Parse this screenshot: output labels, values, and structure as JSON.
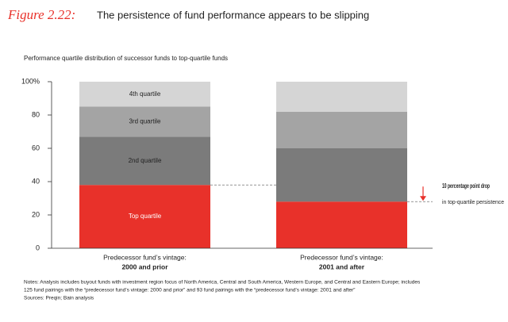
{
  "chart_data": {
    "type": "stacked_bar",
    "figure_label": "Figure 2.22:",
    "title": "The persistence of fund performance appears to be slipping",
    "subtitle": "Performance quartile distribution of successor funds to top-quartile funds",
    "category_prefix": "Predecessor fund’s vintage:",
    "categories": [
      "2000 and prior",
      "2001 and after"
    ],
    "series": [
      {
        "name": "Top quartile",
        "color": "#e8312a",
        "values": [
          38,
          28
        ]
      },
      {
        "name": "2nd quartile",
        "color": "#7b7b7b",
        "values": [
          29,
          32
        ]
      },
      {
        "name": "3rd quartile",
        "color": "#a4a4a4",
        "values": [
          18,
          22
        ]
      },
      {
        "name": "4th quartile",
        "color": "#d5d5d5",
        "values": [
          15,
          18
        ]
      }
    ],
    "ylim": [
      0,
      100
    ],
    "yticks": [
      0,
      20,
      40,
      60,
      80,
      {
        "value": 100,
        "label": "100%"
      }
    ],
    "annotation": {
      "bold": "10 percentage point drop",
      "text": "in top-quartile persistence"
    },
    "notes": [
      "Notes: Analysis includes buyout funds with investment region focus of North America, Central and South America, Western Europe, and Central and Eastern Europe; includes",
      "125 fund pairings with the “predecessor fund’s vintage: 2000 and prior” and 93 fund pairings with the “predecessor fund’s vintage: 2001 and after”"
    ],
    "sources": "Sources: Preqin; Bain analysis"
  }
}
